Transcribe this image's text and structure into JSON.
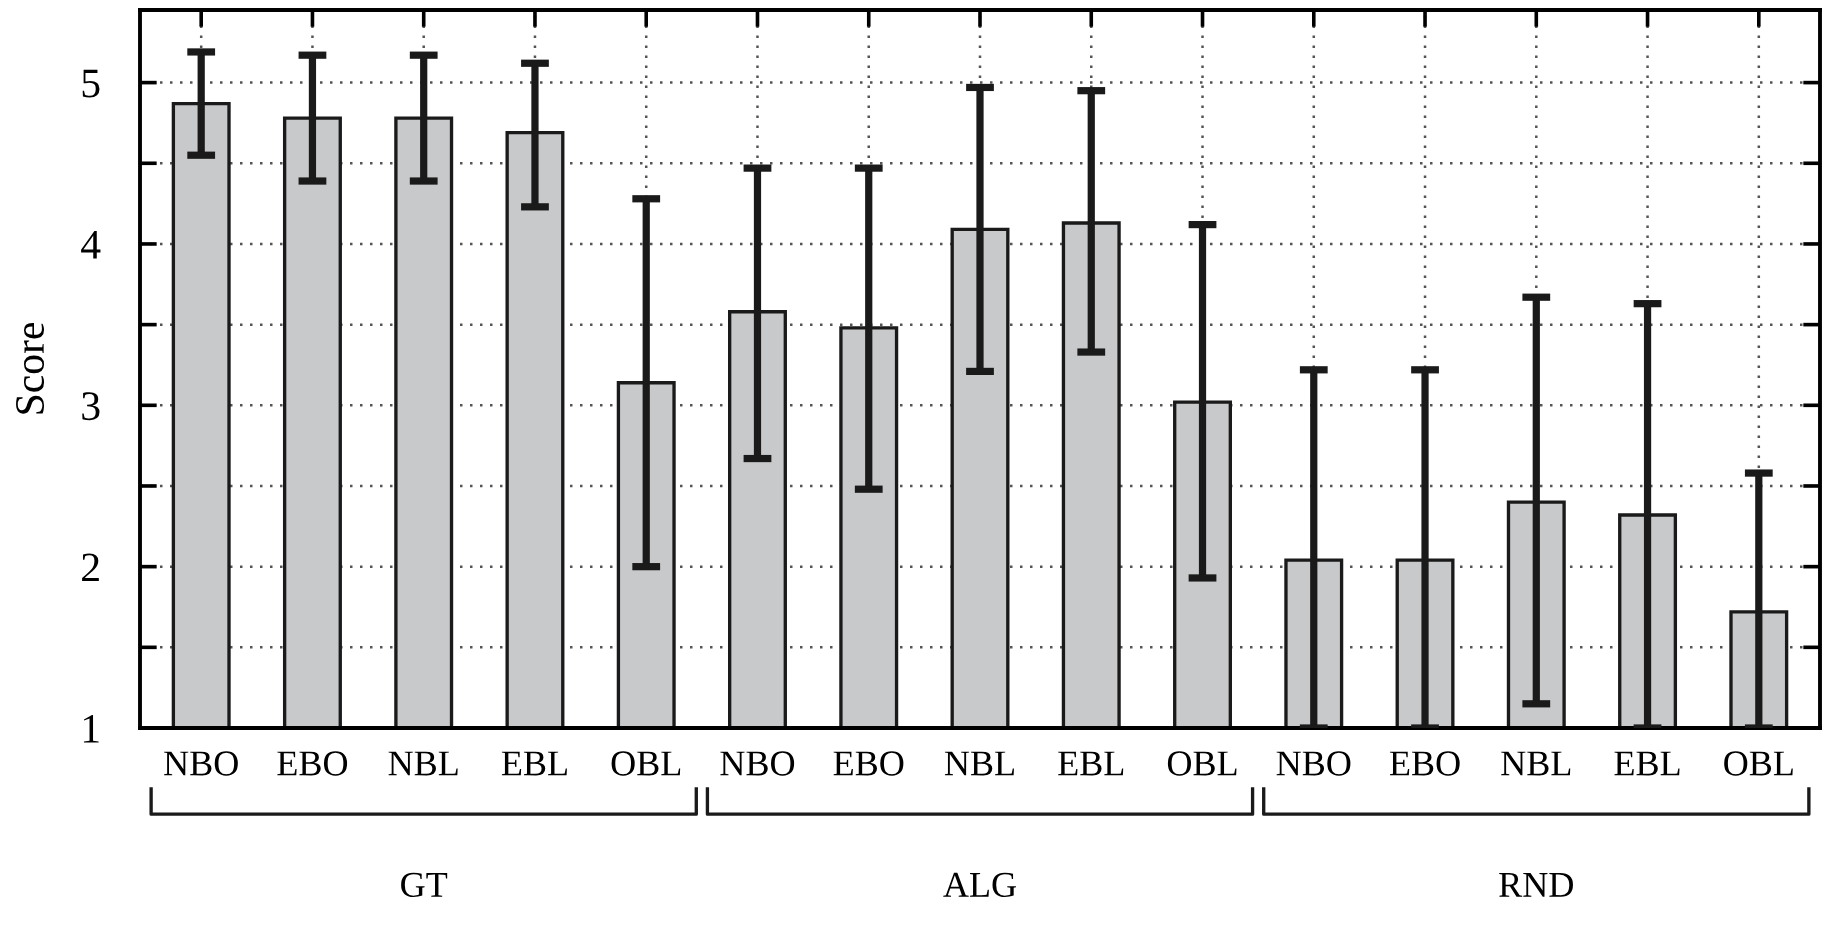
{
  "chart_data": {
    "type": "bar",
    "ylabel": "Score",
    "categories": [
      "NBO",
      "EBO",
      "NBL",
      "EBL",
      "OBL",
      "NBO",
      "EBO",
      "NBL",
      "EBL",
      "OBL",
      "NBO",
      "EBO",
      "NBL",
      "EBL",
      "OBL"
    ],
    "values": [
      4.87,
      4.78,
      4.78,
      4.69,
      3.14,
      3.58,
      3.48,
      4.09,
      4.13,
      3.02,
      2.04,
      2.04,
      2.4,
      2.32,
      1.72
    ],
    "errors": [
      [
        4.55,
        5.19
      ],
      [
        4.39,
        5.17
      ],
      [
        4.39,
        5.17
      ],
      [
        4.23,
        5.12
      ],
      [
        2.0,
        4.28
      ],
      [
        2.67,
        4.47
      ],
      [
        2.48,
        4.47
      ],
      [
        3.21,
        4.97
      ],
      [
        3.33,
        4.95
      ],
      [
        1.93,
        4.12
      ],
      [
        1.0,
        3.22
      ],
      [
        1.0,
        3.22
      ],
      [
        1.15,
        3.67
      ],
      [
        1.0,
        3.63
      ],
      [
        1.0,
        2.58
      ]
    ],
    "color": "#c8c9cb",
    "ylim": [
      1,
      5.45
    ],
    "yticks": [
      1,
      {
        "value": 1.5,
        "label": null
      },
      2,
      {
        "value": 2.5,
        "label": null
      },
      3,
      {
        "value": 3.5,
        "label": null
      },
      4,
      {
        "value": 4.5,
        "label": null
      },
      5
    ],
    "grid": true,
    "annotations": [
      "GT",
      "ALG",
      "RND"
    ]
  }
}
